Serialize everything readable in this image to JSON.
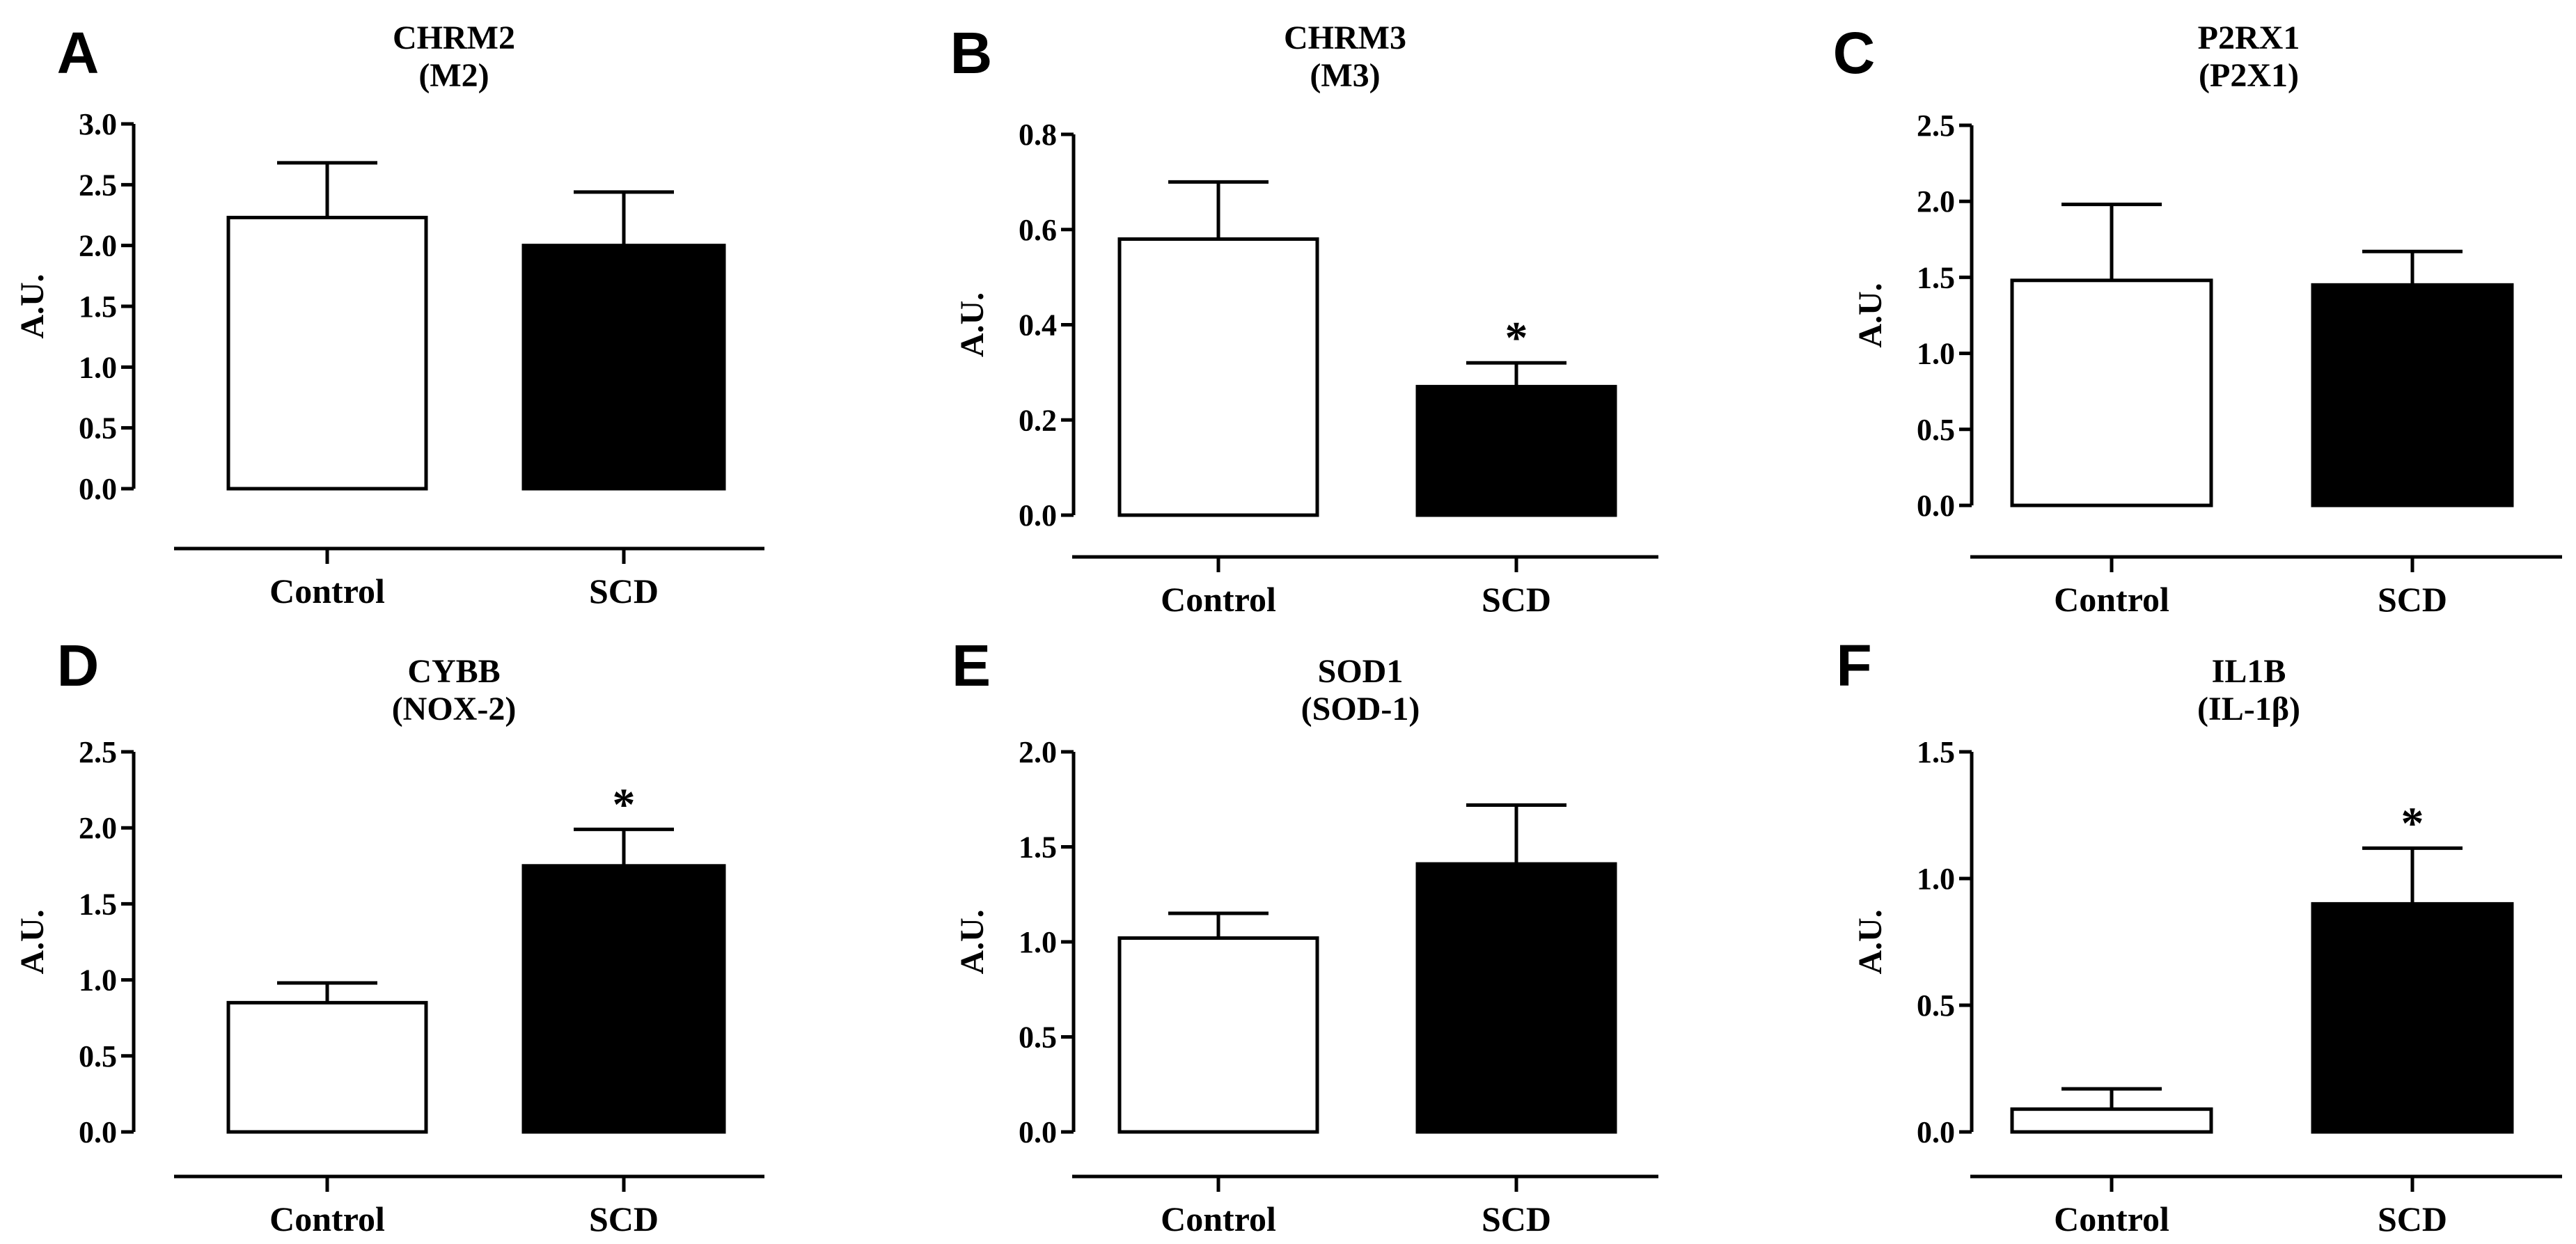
{
  "chart_data": [
    {
      "panel": "A",
      "type": "bar",
      "title": [
        "CHRM2",
        "(M2)"
      ],
      "ylabel": "A.U.",
      "categories": [
        "Control",
        "SCD"
      ],
      "values": [
        2.23,
        2.0
      ],
      "errors": [
        0.45,
        0.44
      ],
      "bar_fills": [
        "#ffffff",
        "#000000"
      ],
      "significance": [
        "",
        ""
      ],
      "ylim": [
        0,
        3.0
      ],
      "yticks": [
        0.0,
        0.5,
        1.0,
        1.5,
        2.0,
        2.5,
        3.0
      ],
      "ytick_labels": [
        "0.0",
        "0.5",
        "1.0",
        "1.5",
        "2.0",
        "2.5",
        "3.0"
      ]
    },
    {
      "panel": "B",
      "type": "bar",
      "title": [
        "CHRM3",
        "(M3)"
      ],
      "ylabel": "A.U.",
      "categories": [
        "Control",
        "SCD"
      ],
      "values": [
        0.58,
        0.27
      ],
      "errors": [
        0.12,
        0.05
      ],
      "bar_fills": [
        "#ffffff",
        "#000000"
      ],
      "significance": [
        "",
        "*"
      ],
      "ylim": [
        0,
        0.8
      ],
      "yticks": [
        0.0,
        0.2,
        0.4,
        0.6,
        0.8
      ],
      "ytick_labels": [
        "0.0",
        "0.2",
        "0.4",
        "0.6",
        "0.8"
      ]
    },
    {
      "panel": "C",
      "type": "bar",
      "title": [
        "P2RX1",
        "(P2X1)"
      ],
      "ylabel": "A.U.",
      "categories": [
        "Control",
        "SCD"
      ],
      "values": [
        1.48,
        1.45
      ],
      "errors": [
        0.5,
        0.22
      ],
      "bar_fills": [
        "#ffffff",
        "#000000"
      ],
      "significance": [
        "",
        ""
      ],
      "ylim": [
        0,
        2.5
      ],
      "yticks": [
        0.0,
        0.5,
        1.0,
        1.5,
        2.0,
        2.5
      ],
      "ytick_labels": [
        "0.0",
        "0.5",
        "1.0",
        "1.5",
        "2.0",
        "2.5"
      ]
    },
    {
      "panel": "D",
      "type": "bar",
      "title": [
        "CYBB",
        "(NOX-2)"
      ],
      "ylabel": "A.U.",
      "categories": [
        "Control",
        "SCD"
      ],
      "values": [
        0.85,
        1.75
      ],
      "errors": [
        0.13,
        0.24
      ],
      "bar_fills": [
        "#ffffff",
        "#000000"
      ],
      "significance": [
        "",
        "*"
      ],
      "ylim": [
        0,
        2.5
      ],
      "yticks": [
        0.0,
        0.5,
        1.0,
        1.5,
        2.0,
        2.5
      ],
      "ytick_labels": [
        "0.0",
        "0.5",
        "1.0",
        "1.5",
        "2.0",
        "2.5"
      ]
    },
    {
      "panel": "E",
      "type": "bar",
      "title": [
        "SOD1",
        "(SOD-1)"
      ],
      "ylabel": "A.U.",
      "categories": [
        "Control",
        "SCD"
      ],
      "values": [
        1.02,
        1.41
      ],
      "errors": [
        0.13,
        0.31
      ],
      "bar_fills": [
        "#ffffff",
        "#000000"
      ],
      "significance": [
        "",
        ""
      ],
      "ylim": [
        0,
        2.0
      ],
      "yticks": [
        0.0,
        0.5,
        1.0,
        1.5,
        2.0
      ],
      "ytick_labels": [
        "0.0",
        "0.5",
        "1.0",
        "1.5",
        "2.0"
      ]
    },
    {
      "panel": "F",
      "type": "bar",
      "title": [
        "IL1B",
        "(IL-1β)"
      ],
      "ylabel": "A.U.",
      "categories": [
        "Control",
        "SCD"
      ],
      "values": [
        0.09,
        0.9
      ],
      "errors": [
        0.08,
        0.22
      ],
      "bar_fills": [
        "#ffffff",
        "#000000"
      ],
      "significance": [
        "",
        "*"
      ],
      "ylim": [
        0,
        1.5
      ],
      "yticks": [
        0.0,
        0.5,
        1.0,
        1.5
      ],
      "ytick_labels": [
        "0.0",
        "0.5",
        "1.0",
        "1.5"
      ]
    }
  ]
}
